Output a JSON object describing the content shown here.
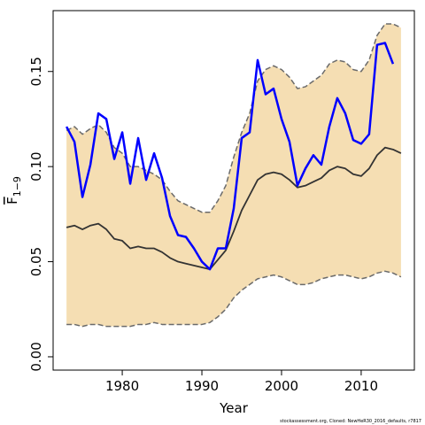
{
  "chart_data": {
    "type": "line",
    "xlabel": "Year",
    "ylabel": "F",
    "ylabel_subscript": "1−9",
    "footnote": "stockassessment.org, Cloned: NewHeR30_2016_defaults, r7817",
    "x": [
      1973,
      1974,
      1975,
      1976,
      1977,
      1978,
      1979,
      1980,
      1981,
      1982,
      1983,
      1984,
      1985,
      1986,
      1987,
      1988,
      1989,
      1990,
      1991,
      1992,
      1993,
      1994,
      1995,
      1996,
      1997,
      1998,
      1999,
      2000,
      2001,
      2002,
      2003,
      2004,
      2005,
      2006,
      2007,
      2008,
      2009,
      2010,
      2011,
      2012,
      2013,
      2014,
      2015
    ],
    "band": {
      "color": "#f5deb3",
      "edge_color": "#6b6b6b",
      "upper": [
        0.119,
        0.121,
        0.117,
        0.12,
        0.122,
        0.118,
        0.11,
        0.107,
        0.1,
        0.1,
        0.098,
        0.096,
        0.093,
        0.087,
        0.082,
        0.08,
        0.078,
        0.076,
        0.076,
        0.082,
        0.09,
        0.105,
        0.118,
        0.128,
        0.145,
        0.151,
        0.153,
        0.151,
        0.147,
        0.141,
        0.142,
        0.145,
        0.148,
        0.154,
        0.156,
        0.155,
        0.151,
        0.15,
        0.156,
        0.169,
        0.175,
        0.175,
        0.173
      ],
      "lower": [
        0.017,
        0.017,
        0.016,
        0.017,
        0.017,
        0.016,
        0.016,
        0.016,
        0.016,
        0.017,
        0.017,
        0.018,
        0.017,
        0.017,
        0.017,
        0.017,
        0.017,
        0.017,
        0.018,
        0.021,
        0.025,
        0.031,
        0.035,
        0.038,
        0.041,
        0.042,
        0.043,
        0.042,
        0.04,
        0.038,
        0.038,
        0.039,
        0.041,
        0.042,
        0.043,
        0.043,
        0.042,
        0.041,
        0.042,
        0.044,
        0.045,
        0.044,
        0.042
      ]
    },
    "series": [
      {
        "color": "#333333",
        "values": [
          0.068,
          0.069,
          0.067,
          0.069,
          0.07,
          0.067,
          0.062,
          0.061,
          0.057,
          0.058,
          0.057,
          0.057,
          0.055,
          0.052,
          0.05,
          0.049,
          0.048,
          0.047,
          0.046,
          0.051,
          0.056,
          0.066,
          0.077,
          0.085,
          0.093,
          0.096,
          0.097,
          0.096,
          0.093,
          0.089,
          0.09,
          0.092,
          0.094,
          0.098,
          0.1,
          0.099,
          0.096,
          0.095,
          0.099,
          0.106,
          0.11,
          0.109,
          0.107
        ]
      },
      {
        "color": "#0000ff",
        "values": [
          0.121,
          0.113,
          0.084,
          0.101,
          0.128,
          0.125,
          0.104,
          0.118,
          0.091,
          0.115,
          0.093,
          0.107,
          0.094,
          0.074,
          0.064,
          0.063,
          0.057,
          0.05,
          0.046,
          0.057,
          0.057,
          0.078,
          0.115,
          0.118,
          0.156,
          0.138,
          0.141,
          0.125,
          0.113,
          0.09,
          0.099,
          0.106,
          0.101,
          0.121,
          0.136,
          0.128,
          0.114,
          0.112,
          0.117,
          0.164,
          0.165,
          0.154,
          null
        ]
      }
    ],
    "xlim": [
      1971.32,
      2016.68
    ],
    "ylim": [
      -0.007,
      0.182
    ],
    "xticks": [
      1980,
      1990,
      2000,
      2010
    ],
    "yticks": [
      {
        "value": 0,
        "label": "0.00"
      },
      {
        "value": 0.05,
        "label": "0.05"
      },
      {
        "value": 0.1,
        "label": "0.10"
      },
      {
        "value": 0.15,
        "label": "0.15"
      }
    ]
  }
}
